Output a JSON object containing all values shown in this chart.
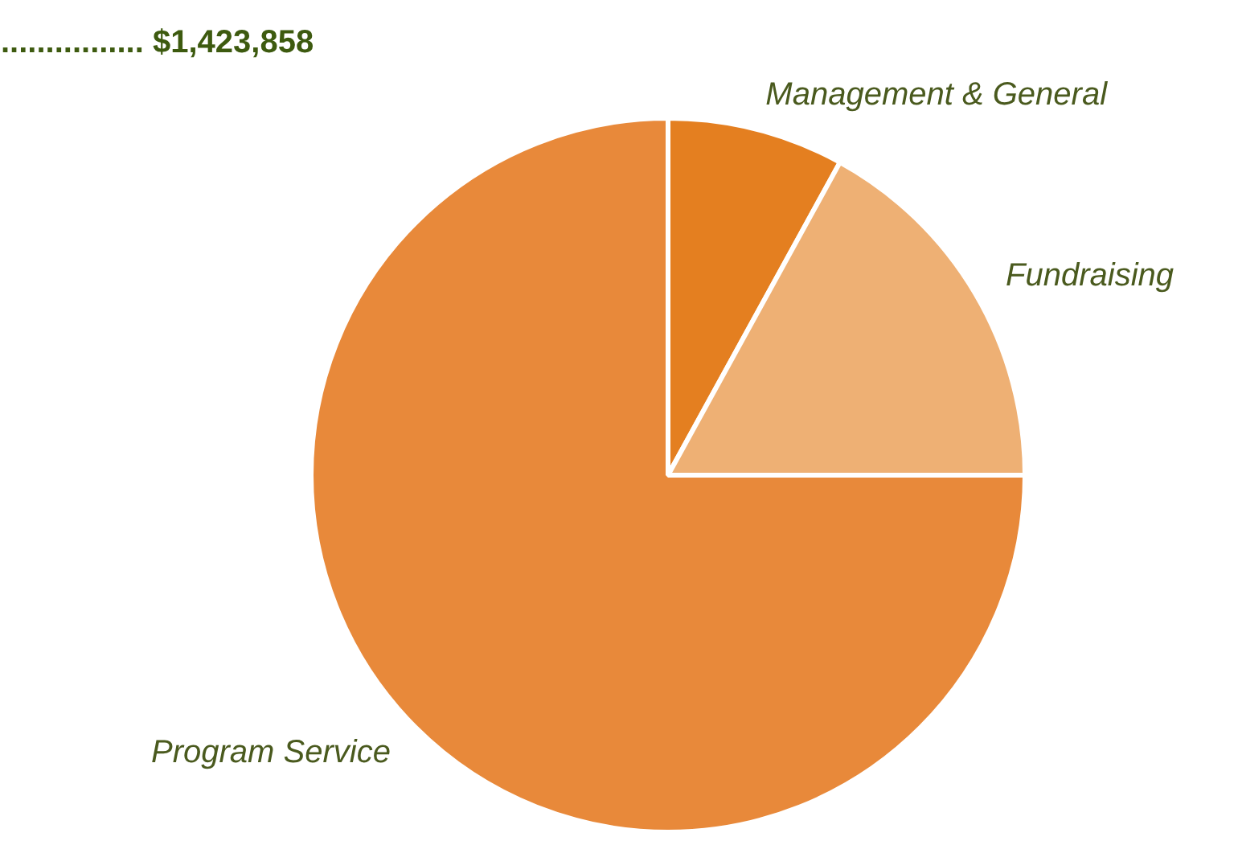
{
  "chart_data": {
    "type": "pie",
    "categories": [
      "Management & General",
      "Fundraising",
      "Program Service"
    ],
    "values": [
      8,
      17,
      75
    ],
    "colors": [
      "#e47f20",
      "#eeb074",
      "#e8893a"
    ],
    "annotations": [
      "................ $1,423,858"
    ],
    "legend": false
  }
}
